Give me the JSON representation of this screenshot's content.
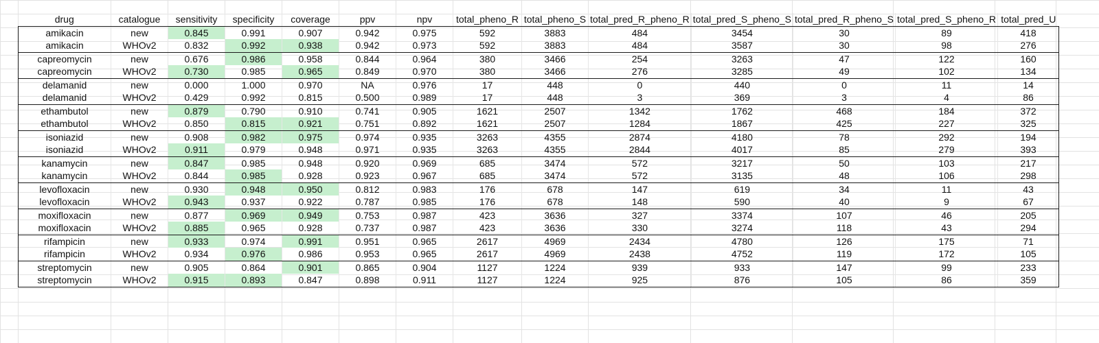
{
  "sheet": {
    "highlight_color": "#c6efce",
    "columns": [
      "drug",
      "catalogue",
      "sensitivity",
      "specificity",
      "coverage",
      "ppv",
      "npv",
      "total_pheno_R",
      "total_pheno_S",
      "total_pred_R_pheno_R",
      "total_pred_S_pheno_S",
      "total_pred_R_pheno_S",
      "total_pred_S_pheno_R",
      "total_pred_U"
    ],
    "rows": [
      {
        "cells": [
          "amikacin",
          "new",
          "0.845",
          "0.991",
          "0.907",
          "0.942",
          "0.975",
          "592",
          "3883",
          "484",
          "3454",
          "30",
          "89",
          "418"
        ],
        "highlight": [
          2
        ]
      },
      {
        "cells": [
          "amikacin",
          "WHOv2",
          "0.832",
          "0.992",
          "0.938",
          "0.942",
          "0.973",
          "592",
          "3883",
          "484",
          "3587",
          "30",
          "98",
          "276"
        ],
        "highlight": [
          3,
          4
        ]
      },
      {
        "cells": [
          "capreomycin",
          "new",
          "0.676",
          "0.986",
          "0.958",
          "0.844",
          "0.964",
          "380",
          "3466",
          "254",
          "3263",
          "47",
          "122",
          "160"
        ],
        "highlight": [
          3
        ]
      },
      {
        "cells": [
          "capreomycin",
          "WHOv2",
          "0.730",
          "0.985",
          "0.965",
          "0.849",
          "0.970",
          "380",
          "3466",
          "276",
          "3285",
          "49",
          "102",
          "134"
        ],
        "highlight": [
          2,
          4
        ]
      },
      {
        "cells": [
          "delamanid",
          "new",
          "0.000",
          "1.000",
          "0.970",
          "NA",
          "0.976",
          "17",
          "448",
          "0",
          "440",
          "0",
          "11",
          "14"
        ],
        "highlight": []
      },
      {
        "cells": [
          "delamanid",
          "WHOv2",
          "0.429",
          "0.992",
          "0.815",
          "0.500",
          "0.989",
          "17",
          "448",
          "3",
          "369",
          "3",
          "4",
          "86"
        ],
        "highlight": []
      },
      {
        "cells": [
          "ethambutol",
          "new",
          "0.879",
          "0.790",
          "0.910",
          "0.741",
          "0.905",
          "1621",
          "2507",
          "1342",
          "1762",
          "468",
          "184",
          "372"
        ],
        "highlight": [
          2
        ]
      },
      {
        "cells": [
          "ethambutol",
          "WHOv2",
          "0.850",
          "0.815",
          "0.921",
          "0.751",
          "0.892",
          "1621",
          "2507",
          "1284",
          "1867",
          "425",
          "227",
          "325"
        ],
        "highlight": [
          3,
          4
        ]
      },
      {
        "cells": [
          "isoniazid",
          "new",
          "0.908",
          "0.982",
          "0.975",
          "0.974",
          "0.935",
          "3263",
          "4355",
          "2874",
          "4180",
          "78",
          "292",
          "194"
        ],
        "highlight": [
          3,
          4
        ]
      },
      {
        "cells": [
          "isoniazid",
          "WHOv2",
          "0.911",
          "0.979",
          "0.948",
          "0.971",
          "0.935",
          "3263",
          "4355",
          "2844",
          "4017",
          "85",
          "279",
          "393"
        ],
        "highlight": [
          2
        ]
      },
      {
        "cells": [
          "kanamycin",
          "new",
          "0.847",
          "0.985",
          "0.948",
          "0.920",
          "0.969",
          "685",
          "3474",
          "572",
          "3217",
          "50",
          "103",
          "217"
        ],
        "highlight": [
          2
        ]
      },
      {
        "cells": [
          "kanamycin",
          "WHOv2",
          "0.844",
          "0.985",
          "0.928",
          "0.923",
          "0.967",
          "685",
          "3474",
          "572",
          "3135",
          "48",
          "106",
          "298"
        ],
        "highlight": [
          3
        ]
      },
      {
        "cells": [
          "levofloxacin",
          "new",
          "0.930",
          "0.948",
          "0.950",
          "0.812",
          "0.983",
          "176",
          "678",
          "147",
          "619",
          "34",
          "11",
          "43"
        ],
        "highlight": [
          3,
          4
        ]
      },
      {
        "cells": [
          "levofloxacin",
          "WHOv2",
          "0.943",
          "0.937",
          "0.922",
          "0.787",
          "0.985",
          "176",
          "678",
          "148",
          "590",
          "40",
          "9",
          "67"
        ],
        "highlight": [
          2
        ]
      },
      {
        "cells": [
          "moxifloxacin",
          "new",
          "0.877",
          "0.969",
          "0.949",
          "0.753",
          "0.987",
          "423",
          "3636",
          "327",
          "3374",
          "107",
          "46",
          "205"
        ],
        "highlight": [
          3,
          4
        ]
      },
      {
        "cells": [
          "moxifloxacin",
          "WHOv2",
          "0.885",
          "0.965",
          "0.928",
          "0.737",
          "0.987",
          "423",
          "3636",
          "330",
          "3274",
          "118",
          "43",
          "294"
        ],
        "highlight": [
          2
        ]
      },
      {
        "cells": [
          "rifampicin",
          "new",
          "0.933",
          "0.974",
          "0.991",
          "0.951",
          "0.965",
          "2617",
          "4969",
          "2434",
          "4780",
          "126",
          "175",
          "71"
        ],
        "highlight": [
          2,
          4
        ]
      },
      {
        "cells": [
          "rifampicin",
          "WHOv2",
          "0.934",
          "0.976",
          "0.986",
          "0.953",
          "0.965",
          "2617",
          "4969",
          "2438",
          "4752",
          "119",
          "172",
          "105"
        ],
        "highlight": [
          3
        ]
      },
      {
        "cells": [
          "streptomycin",
          "new",
          "0.905",
          "0.864",
          "0.901",
          "0.865",
          "0.904",
          "1127",
          "1224",
          "939",
          "933",
          "147",
          "99",
          "233"
        ],
        "highlight": [
          4
        ]
      },
      {
        "cells": [
          "streptomycin",
          "WHOv2",
          "0.915",
          "0.893",
          "0.847",
          "0.898",
          "0.911",
          "1127",
          "1224",
          "925",
          "876",
          "105",
          "86",
          "359"
        ],
        "highlight": [
          2,
          3
        ]
      }
    ]
  }
}
